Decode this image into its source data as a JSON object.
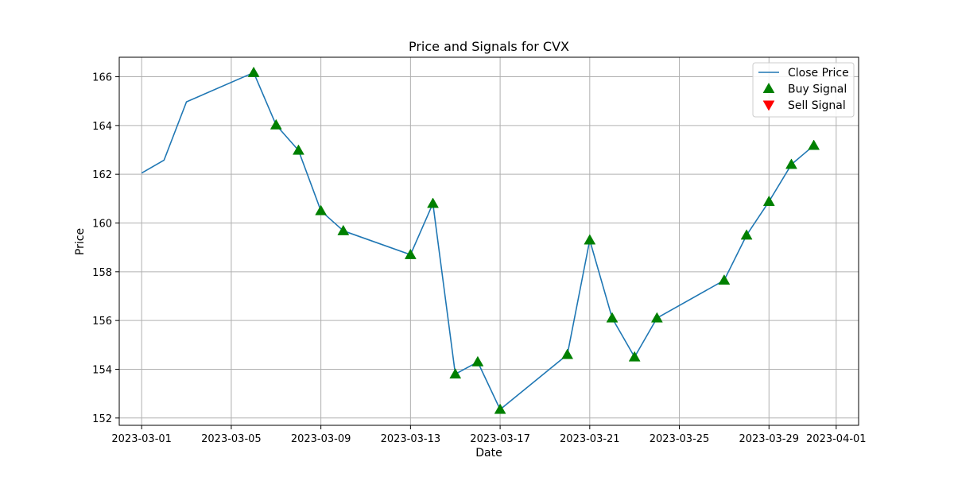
{
  "chart_data": {
    "type": "line",
    "title": "Price and Signals for CVX",
    "xlabel": "Date",
    "ylabel": "Price",
    "xlim": [
      "2023-02-28",
      "2023-04-02"
    ],
    "ylim": [
      151.7,
      166.8
    ],
    "grid": true,
    "legend_position": "top-right",
    "x_ticks": [
      "2023-03-01",
      "2023-03-05",
      "2023-03-09",
      "2023-03-13",
      "2023-03-17",
      "2023-03-21",
      "2023-03-25",
      "2023-03-29",
      "2023-04-01"
    ],
    "y_ticks": [
      152,
      154,
      156,
      158,
      160,
      162,
      164,
      166
    ],
    "series": [
      {
        "name": "Close Price",
        "kind": "line",
        "color": "#1f77b4",
        "x": [
          "2023-03-01",
          "2023-03-02",
          "2023-03-03",
          "2023-03-06",
          "2023-03-07",
          "2023-03-08",
          "2023-03-09",
          "2023-03-10",
          "2023-03-13",
          "2023-03-14",
          "2023-03-15",
          "2023-03-16",
          "2023-03-17",
          "2023-03-20",
          "2023-03-21",
          "2023-03-22",
          "2023-03-23",
          "2023-03-24",
          "2023-03-27",
          "2023-03-28",
          "2023-03-29",
          "2023-03-30",
          "2023-03-31"
        ],
        "y": [
          162.05,
          162.58,
          164.97,
          166.17,
          164.02,
          162.98,
          160.5,
          159.68,
          158.7,
          160.8,
          153.8,
          154.3,
          152.35,
          154.6,
          159.3,
          156.1,
          154.5,
          156.1,
          157.65,
          159.5,
          160.88,
          162.4,
          163.18
        ]
      },
      {
        "name": "Buy Signal",
        "kind": "marker",
        "marker": "triangle-up",
        "color": "#008000",
        "x": [
          "2023-03-06",
          "2023-03-07",
          "2023-03-08",
          "2023-03-09",
          "2023-03-10",
          "2023-03-13",
          "2023-03-14",
          "2023-03-15",
          "2023-03-16",
          "2023-03-17",
          "2023-03-20",
          "2023-03-21",
          "2023-03-22",
          "2023-03-23",
          "2023-03-24",
          "2023-03-27",
          "2023-03-28",
          "2023-03-29",
          "2023-03-30",
          "2023-03-31"
        ],
        "y": [
          166.17,
          164.02,
          162.98,
          160.5,
          159.68,
          158.7,
          160.8,
          153.8,
          154.3,
          152.35,
          154.6,
          159.3,
          156.1,
          154.5,
          156.1,
          157.65,
          159.5,
          160.88,
          162.4,
          163.18
        ]
      },
      {
        "name": "Sell Signal",
        "kind": "marker",
        "marker": "triangle-down",
        "color": "#ff0000",
        "x": [],
        "y": []
      }
    ]
  }
}
